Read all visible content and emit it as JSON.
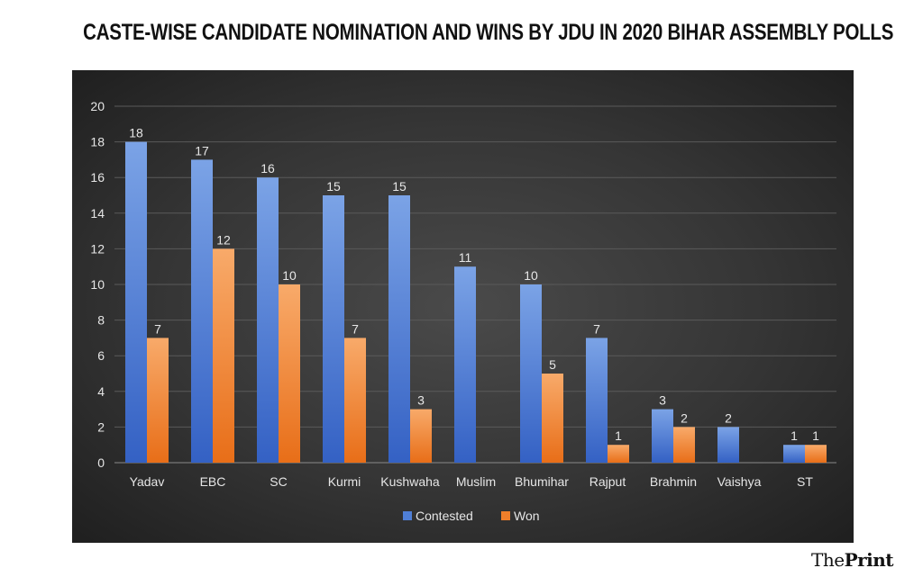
{
  "chart_data": {
    "type": "bar",
    "title": "CASTE-WISE CANDIDATE NOMINATION AND WINS BY JDU IN 2020 BIHAR ASSEMBLY POLLS",
    "categories": [
      "Yadav",
      "EBC",
      "SC",
      "Kurmi",
      "Kushwaha",
      "Muslim",
      "Bhumihar",
      "Rajput",
      "Brahmin",
      "Vaishya",
      "ST"
    ],
    "series": [
      {
        "name": "Contested",
        "values": [
          18,
          17,
          16,
          15,
          15,
          11,
          10,
          7,
          3,
          2,
          1
        ],
        "color": "#4f7fd6"
      },
      {
        "name": "Won",
        "values": [
          7,
          12,
          10,
          7,
          3,
          0,
          5,
          1,
          2,
          0,
          1
        ],
        "color": "#f07f2a"
      }
    ],
    "ylim": [
      0,
      20
    ],
    "yticks": [
      0,
      2,
      4,
      6,
      8,
      10,
      12,
      14,
      16,
      18,
      20
    ],
    "grid": true,
    "legend": "bottom",
    "xlabel": "",
    "ylabel": ""
  },
  "logo": {
    "text_light": "The",
    "text_bold": "Print"
  }
}
